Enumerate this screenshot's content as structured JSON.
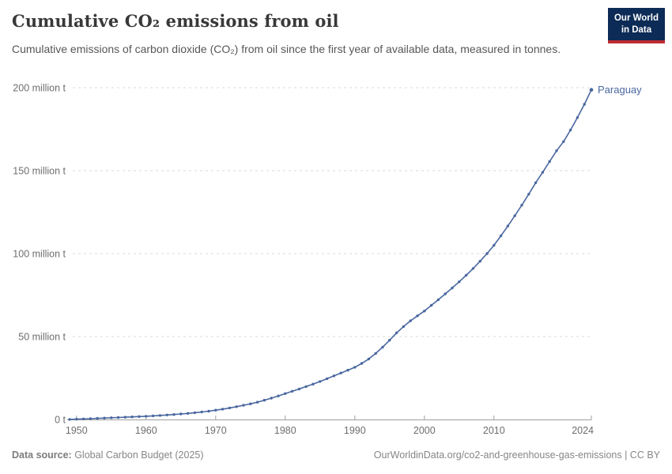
{
  "header": {
    "title": "Cumulative CO₂ emissions from oil",
    "subtitle": "Cumulative emissions of carbon dioxide (CO₂) from oil since the first year of available data, measured in tonnes.",
    "logo": {
      "line1": "Our World",
      "line2": "in Data"
    }
  },
  "footer": {
    "source_label": "Data source:",
    "source_value": " Global Carbon Budget (2025)",
    "link": "OurWorldinData.org/co2-and-greenhouse-gas-emissions | CC BY"
  },
  "colors": {
    "line": "#4a679f",
    "entity_label": "#4a679f",
    "grid": "#d8d8d8",
    "axis": "#9f9f9f",
    "tick_text": "#6e6e6e",
    "title_text": "#383838",
    "subtitle_text": "#575757",
    "footer_text": "#868686",
    "logo_navy": "#0c2b56",
    "logo_red": "#bd2b32",
    "background": "#ffffff"
  },
  "chart_data": {
    "type": "line",
    "title": "Cumulative CO₂ emissions from oil",
    "xlabel": "",
    "ylabel": "",
    "unit": "tonnes",
    "xlim": [
      1949,
      2024
    ],
    "ylim": [
      0,
      200000000
    ],
    "grid": "horizontal-dashed",
    "legend_position": "end-of-line-label",
    "x_ticks": [
      1950,
      1960,
      1970,
      1980,
      1990,
      2000,
      2010,
      2024
    ],
    "x_tick_labels": [
      "1950",
      "1960",
      "1970",
      "1980",
      "1990",
      "2000",
      "2010",
      "2024"
    ],
    "y_ticks_million_t": [
      0,
      50,
      100,
      150,
      200
    ],
    "y_tick_labels": [
      "0 t",
      "50 million t",
      "100 million t",
      "150 million t",
      "200 million t"
    ],
    "series": [
      {
        "name": "Paraguay",
        "color": "#4a679f",
        "years": [
          1949,
          1950,
          1951,
          1952,
          1953,
          1954,
          1955,
          1956,
          1957,
          1958,
          1959,
          1960,
          1961,
          1962,
          1963,
          1964,
          1965,
          1966,
          1967,
          1968,
          1969,
          1970,
          1971,
          1972,
          1973,
          1974,
          1975,
          1976,
          1977,
          1978,
          1979,
          1980,
          1981,
          1982,
          1983,
          1984,
          1985,
          1986,
          1987,
          1988,
          1989,
          1990,
          1991,
          1992,
          1993,
          1994,
          1995,
          1996,
          1997,
          1998,
          1999,
          2000,
          2001,
          2002,
          2003,
          2004,
          2005,
          2006,
          2007,
          2008,
          2009,
          2010,
          2011,
          2012,
          2013,
          2014,
          2015,
          2016,
          2017,
          2018,
          2019,
          2020,
          2021,
          2022,
          2023,
          2024
        ],
        "values_million_t": [
          0.05,
          0.2,
          0.35,
          0.5,
          0.68,
          0.88,
          1.05,
          1.2,
          1.38,
          1.55,
          1.74,
          1.95,
          2.18,
          2.43,
          2.7,
          3.0,
          3.32,
          3.68,
          4.08,
          4.52,
          5.02,
          5.6,
          6.25,
          6.95,
          7.72,
          8.55,
          9.45,
          10.45,
          11.6,
          12.85,
          14.2,
          15.6,
          17.0,
          18.4,
          19.85,
          21.35,
          22.9,
          24.55,
          26.3,
          28.0,
          29.7,
          31.5,
          33.8,
          36.5,
          39.8,
          43.6,
          47.8,
          52.2,
          56.0,
          59.5,
          62.5,
          65.4,
          68.8,
          72.2,
          75.7,
          79.3,
          83.0,
          86.9,
          91.0,
          95.4,
          100.0,
          105.0,
          110.7,
          116.6,
          122.8,
          129.2,
          135.8,
          142.7,
          149.0,
          155.5,
          162.0,
          167.5,
          174.5,
          182.0,
          190.0,
          198.7
        ]
      }
    ]
  }
}
